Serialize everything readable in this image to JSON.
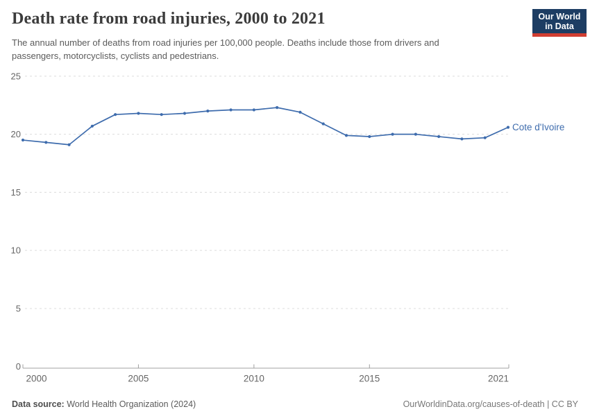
{
  "header": {
    "title": "Death rate from road injuries, 2000 to 2021",
    "subtitle": "The annual number of deaths from road injuries per 100,000 people. Deaths include those from drivers and passengers, motorcyclists, cyclists and pedestrians.",
    "logo": {
      "line1": "Our World",
      "line2": "in Data",
      "bg_color": "#1d3d63",
      "accent_color": "#d13e32"
    }
  },
  "chart_data": {
    "type": "line",
    "title": "Death rate from road injuries, 2000 to 2021",
    "xlabel": "",
    "ylabel": "",
    "x": [
      2000,
      2001,
      2002,
      2003,
      2004,
      2005,
      2006,
      2007,
      2008,
      2009,
      2010,
      2011,
      2012,
      2013,
      2014,
      2015,
      2016,
      2017,
      2018,
      2019,
      2020,
      2021
    ],
    "series": [
      {
        "name": "Cote d'Ivoire",
        "color": "#3e6cad",
        "values": [
          19.5,
          19.3,
          19.1,
          20.7,
          21.7,
          21.8,
          21.7,
          21.8,
          22.0,
          22.1,
          22.1,
          22.3,
          21.9,
          20.9,
          19.9,
          19.8,
          20.0,
          20.0,
          19.8,
          19.6,
          19.7,
          20.6
        ]
      }
    ],
    "ylim": [
      0,
      25
    ],
    "yticks": [
      0,
      5,
      10,
      15,
      20,
      25
    ],
    "xtick_labels": [
      "2000",
      "2005",
      "2010",
      "2015",
      "2021"
    ],
    "xtick_years": [
      2000,
      2005,
      2010,
      2015,
      2021
    ],
    "grid": "horizontal-dashed",
    "legend": "end-of-line-label",
    "axis_color": "#a0a0a0",
    "grid_color": "#dcdcdc",
    "tick_label_color": "#666666"
  },
  "footer": {
    "source_label": "Data source:",
    "source_value": "World Health Organization (2024)",
    "credit": "OurWorldinData.org/causes-of-death | CC BY"
  }
}
